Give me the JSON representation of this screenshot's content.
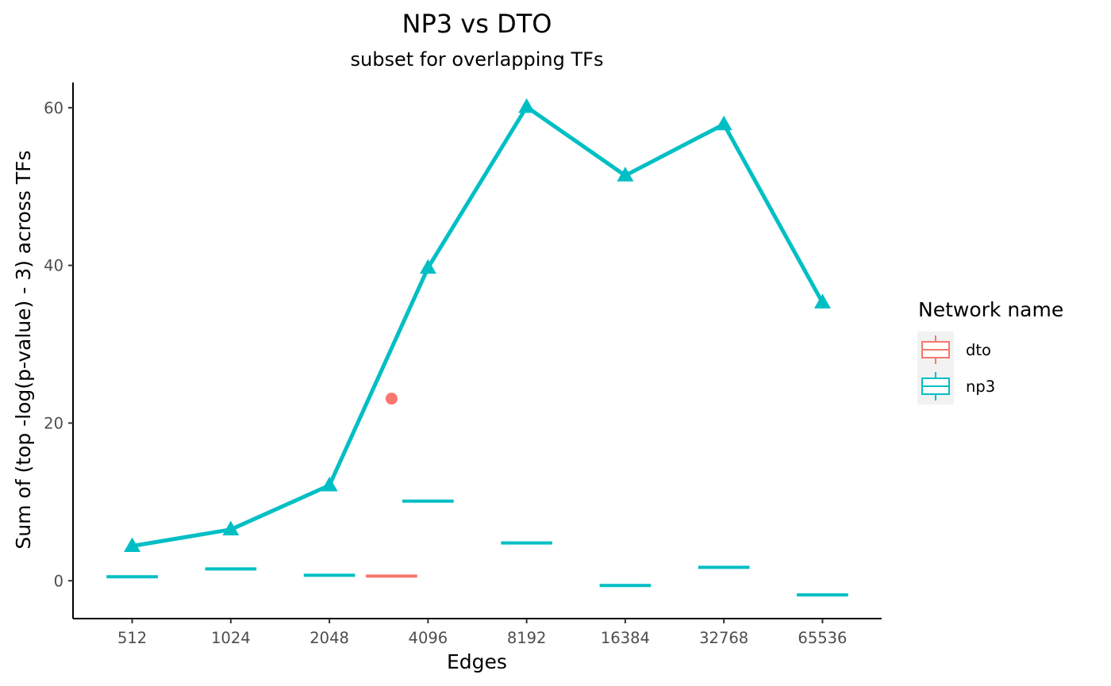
{
  "chart_data": {
    "type": "line",
    "title": "NP3 vs DTO",
    "subtitle": "subset for overlapping TFs",
    "xlabel": "Edges",
    "ylabel": "Sum of (top -log(p-value) - 3) across TFs",
    "categories": [
      "512",
      "1024",
      "2048",
      "4096",
      "8192",
      "16384",
      "32768",
      "65536"
    ],
    "ylim": [
      -4.8,
      63.2
    ],
    "yticks": [
      0,
      20,
      40,
      60
    ],
    "grid": false,
    "legend_position": "right",
    "legend_title": "Network name",
    "legend_entries": [
      {
        "name": "dto",
        "color": "#F8766D"
      },
      {
        "name": "np3",
        "color": "#00BFC4"
      }
    ],
    "series": [
      {
        "name": "np3",
        "color": "#00BFC4",
        "line_values": [
          4.4,
          6.5,
          12.1,
          39.7,
          60.1,
          51.4,
          57.9,
          35.3
        ],
        "box_medians": [
          0.5,
          1.5,
          0.7,
          10.1,
          4.8,
          -0.6,
          1.7,
          -1.8
        ],
        "box_positions": [
          1,
          2,
          3,
          4,
          5,
          6,
          7,
          8
        ]
      },
      {
        "name": "dto",
        "color": "#F8766D",
        "box_medians": [
          0.6
        ],
        "box_positions": [
          3.63
        ],
        "outliers": [
          {
            "x": 3.63,
            "y": 23.1
          }
        ]
      }
    ]
  }
}
